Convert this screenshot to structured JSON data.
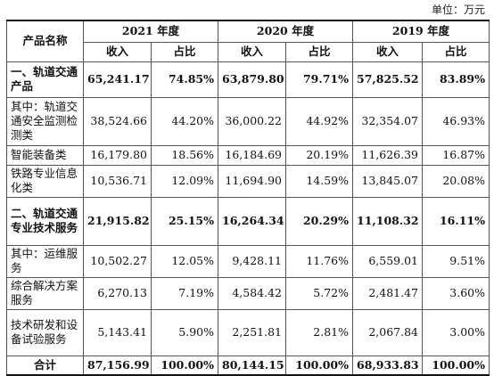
{
  "unit_label": "单位：万元",
  "header": {
    "category": "产品名称",
    "years": [
      "2021 年度",
      "2020 年度",
      "2019 年度"
    ],
    "revenue": "收入",
    "share": "占比"
  },
  "rows": [
    {
      "name": "一、轨道交通产品",
      "bold": true,
      "cells": [
        "65,241.17",
        "74.85%",
        "63,879.80",
        "79.71%",
        "57,825.52",
        "83.89%"
      ]
    },
    {
      "name": "其中：轨道交通安全监测检测类",
      "bold": false,
      "cells": [
        "38,524.66",
        "44.20%",
        "36,000.22",
        "44.92%",
        "32,354.07",
        "46.93%"
      ]
    },
    {
      "name": "智能装备类",
      "bold": false,
      "cells": [
        "16,179.80",
        "18.56%",
        "16,184.69",
        "20.19%",
        "11,626.39",
        "16.87%"
      ]
    },
    {
      "name": "铁路专业信息化类",
      "bold": false,
      "cells": [
        "10,536.71",
        "12.09%",
        "11,694.90",
        "14.59%",
        "13,845.07",
        "20.08%"
      ]
    },
    {
      "name": "二、轨道交通专业技术服务",
      "bold": true,
      "cells": [
        "21,915.82",
        "25.15%",
        "16,264.34",
        "20.29%",
        "11,108.32",
        "16.11%"
      ]
    },
    {
      "name": "其中：运维服务",
      "bold": false,
      "cells": [
        "10,502.27",
        "12.05%",
        "9,428.11",
        "11.76%",
        "6,559.01",
        "9.51%"
      ]
    },
    {
      "name": "综合解决方案服务",
      "bold": false,
      "cells": [
        "6,270.13",
        "7.19%",
        "4,584.42",
        "5.72%",
        "2,481.47",
        "3.60%"
      ]
    },
    {
      "name": "技术研发和设备试验服务",
      "bold": false,
      "cells": [
        "5,143.41",
        "5.90%",
        "2,251.81",
        "2.81%",
        "2,067.84",
        "3.00%"
      ]
    }
  ],
  "total": {
    "name": "合计",
    "cells": [
      "87,156.99",
      "100.00%",
      "80,144.15",
      "100.00%",
      "68,933.83",
      "100.00%"
    ]
  }
}
